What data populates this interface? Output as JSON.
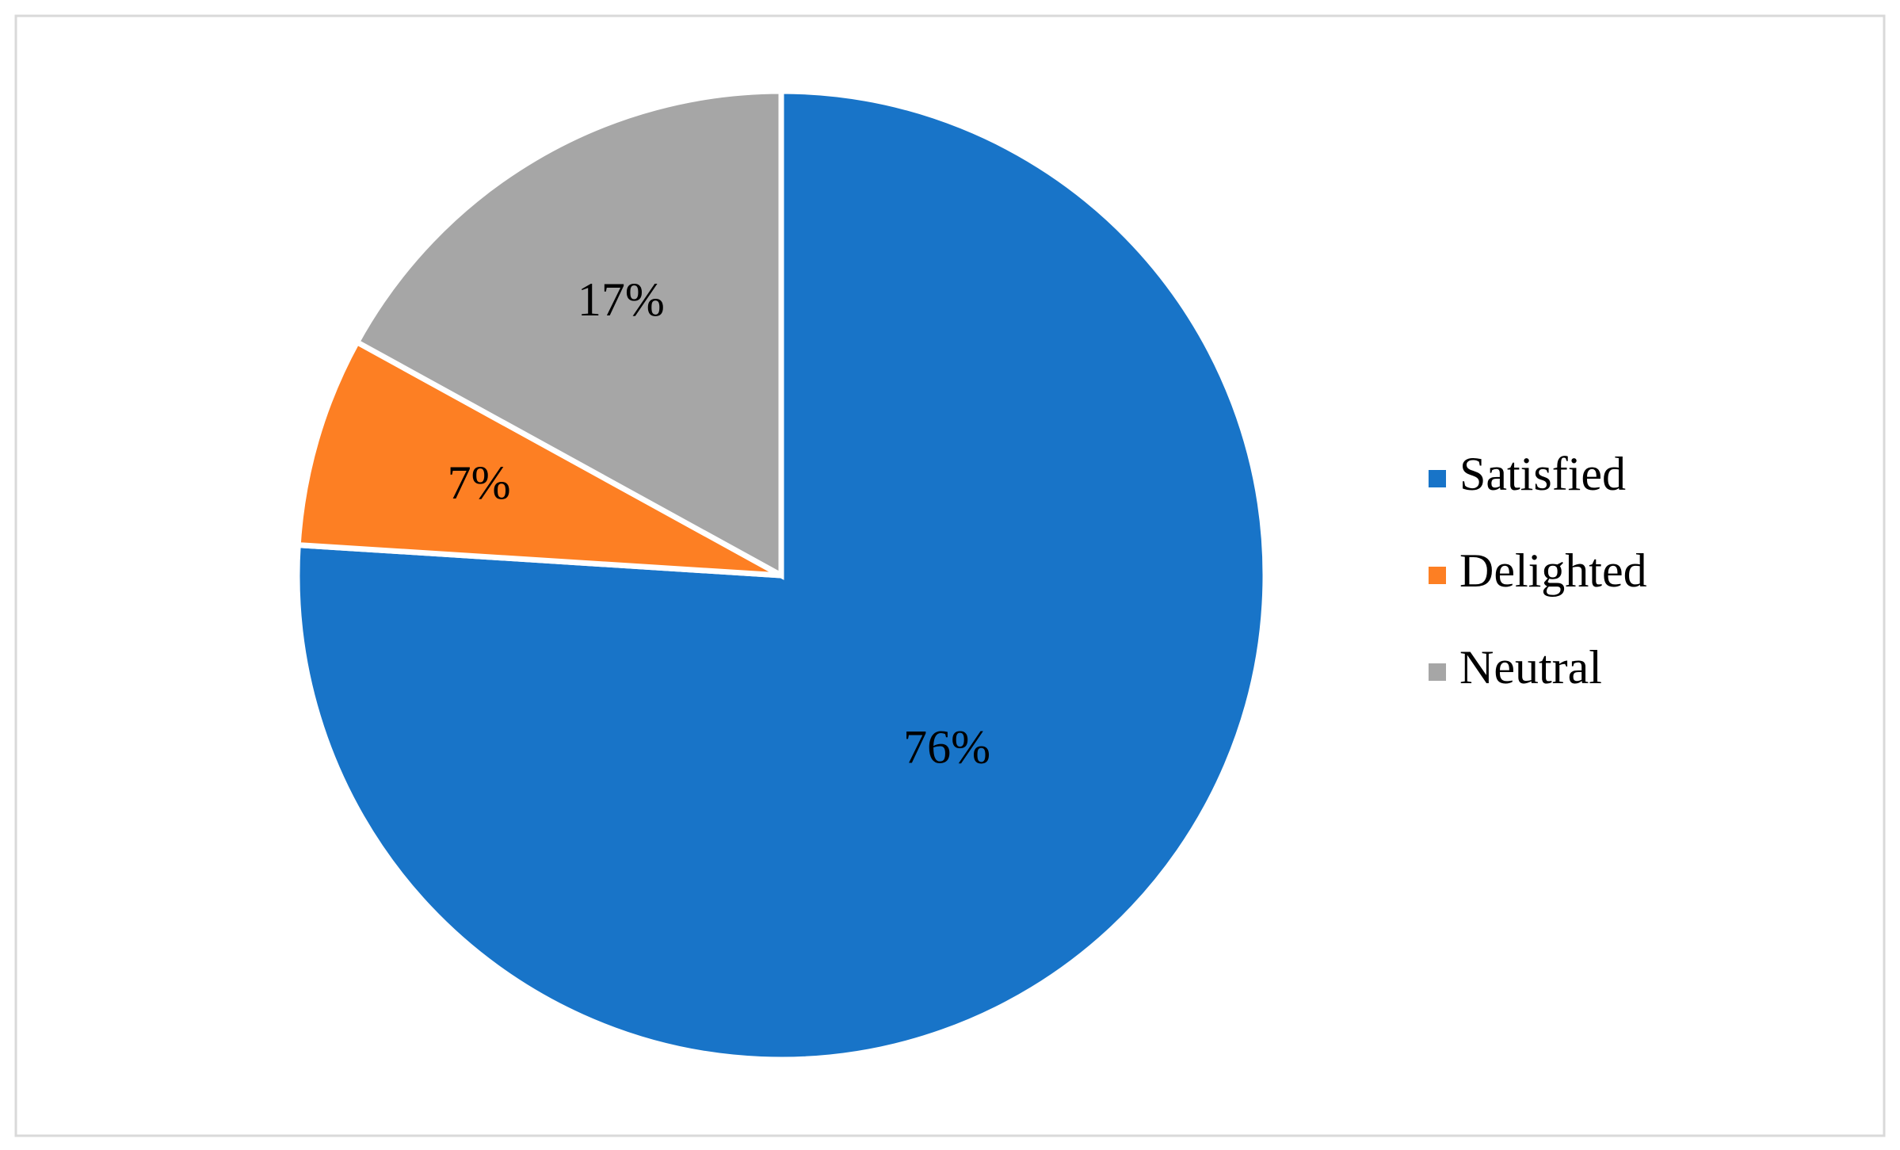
{
  "chart_data": {
    "type": "pie",
    "categories": [
      "Satisfied",
      "Delighted",
      "Neutral"
    ],
    "values": [
      76,
      7,
      17
    ],
    "value_labels": [
      "76%",
      "7%",
      "17%"
    ],
    "colors": [
      "#1874c8",
      "#fd7f23",
      "#a6a6a6"
    ],
    "legend": "right"
  }
}
